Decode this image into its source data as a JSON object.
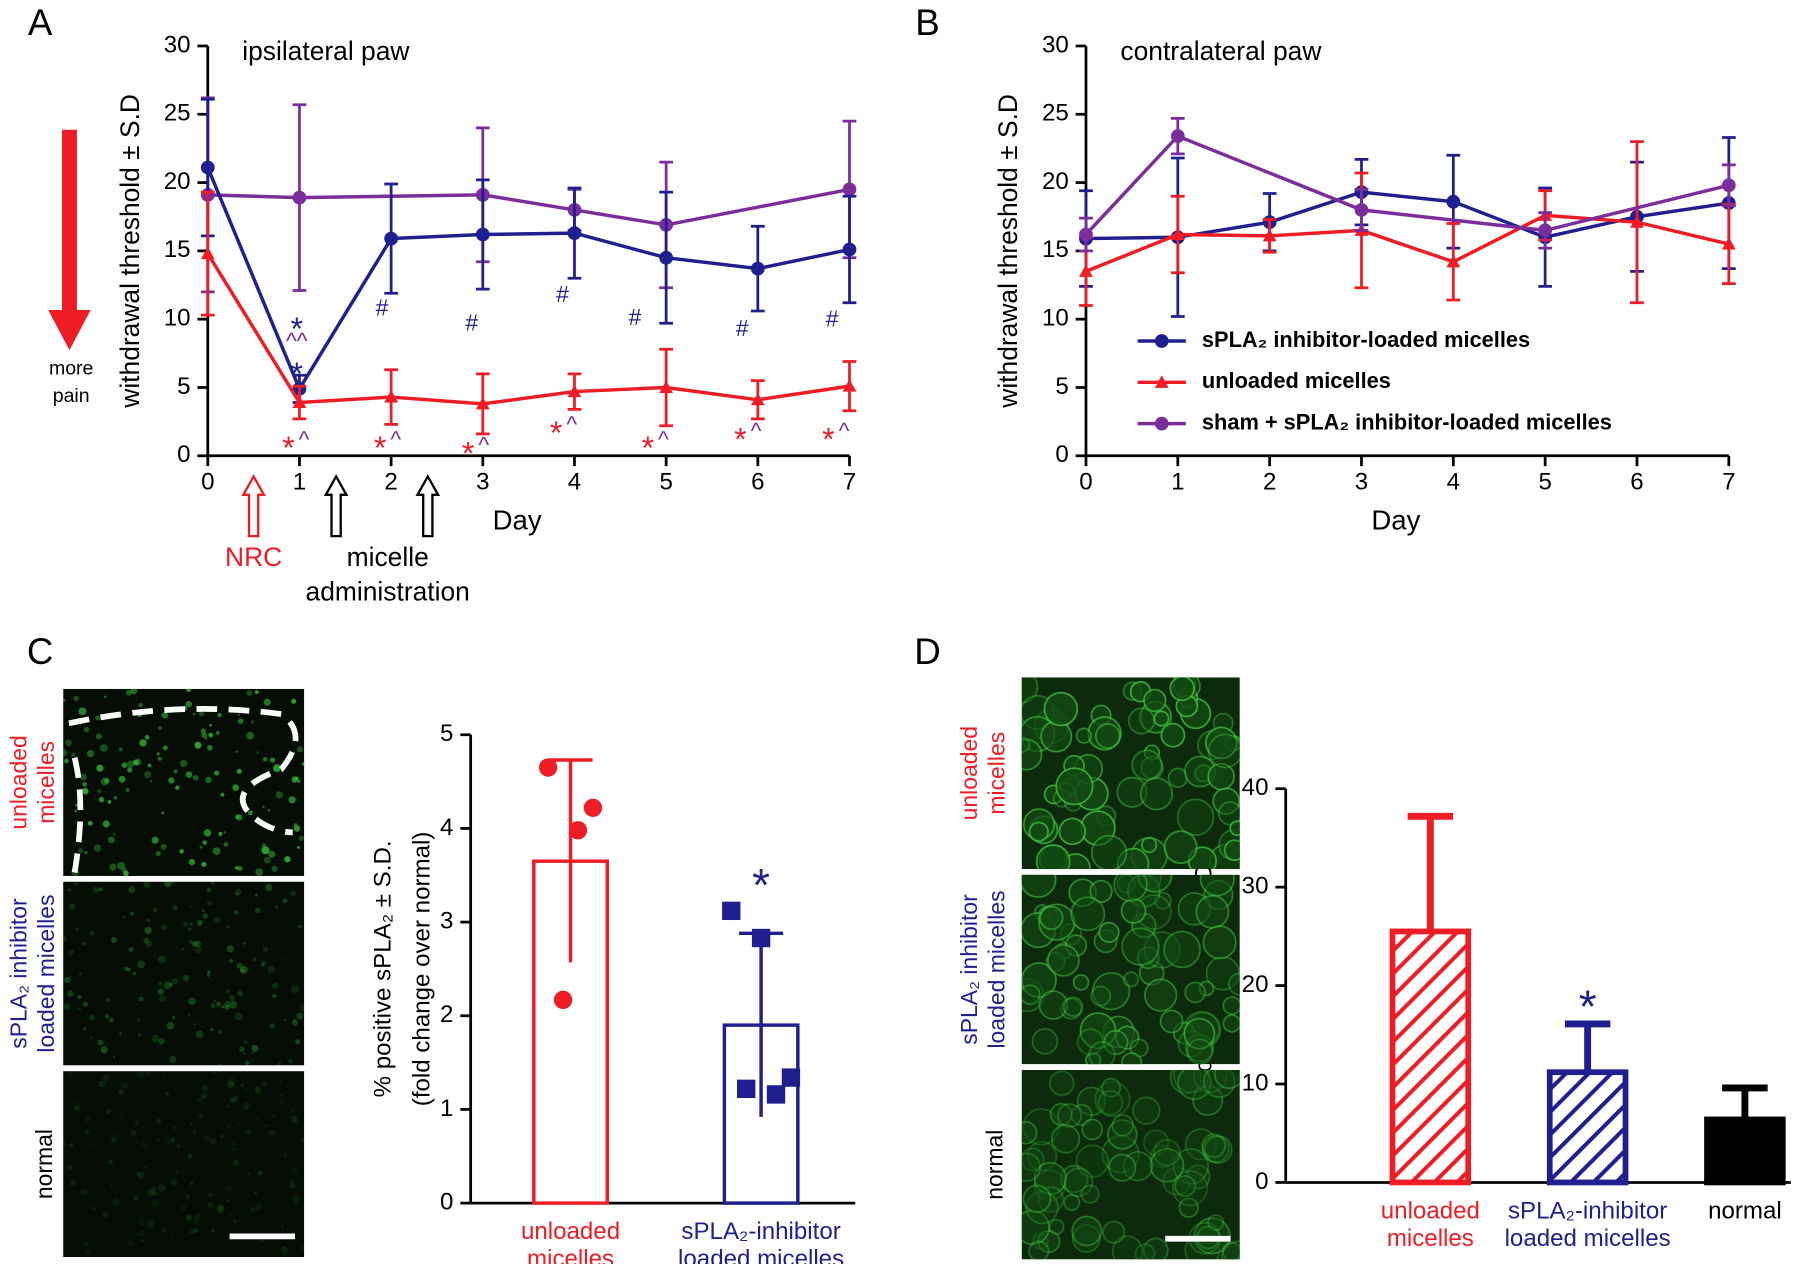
{
  "chart_data": [
    {
      "type": "line",
      "panel": "A",
      "title": "ipsilateral paw",
      "xlabel": "Day",
      "ylabel": "withdrawal threshold ± S.D",
      "xlim": [
        0,
        7
      ],
      "xticks": [
        0,
        1,
        2,
        3,
        4,
        5,
        6,
        7
      ],
      "ylim": [
        0,
        30
      ],
      "yticks": [
        0,
        5,
        10,
        15,
        20,
        25,
        30
      ],
      "series": [
        {
          "color": "#7b2d9b",
          "marker": "circle",
          "x": [
            0,
            1,
            3,
            4,
            5,
            7
          ],
          "values": [
            19.1,
            18.9,
            19.1,
            18.0,
            16.9,
            19.5
          ],
          "errors": [
            7.1,
            6.8,
            4.9,
            1.5,
            4.6,
            5.0
          ]
        },
        {
          "color": "#1f1f8f",
          "marker": "circle",
          "x": [
            0,
            1,
            2,
            3,
            4,
            5,
            6,
            7
          ],
          "values": [
            21.1,
            4.9,
            15.9,
            16.2,
            16.3,
            14.5,
            13.7,
            15.1
          ],
          "errors": [
            5.0,
            1.0,
            4.0,
            4.0,
            3.3,
            4.8,
            3.1,
            3.9
          ]
        },
        {
          "color": "#ee1c25",
          "marker": "triangle",
          "x": [
            0,
            1,
            2,
            3,
            4,
            5,
            6,
            7
          ],
          "values": [
            14.8,
            3.9,
            4.3,
            3.8,
            4.7,
            5.0,
            4.1,
            5.1
          ],
          "errors": [
            4.5,
            1.2,
            2.0,
            2.2,
            1.3,
            2.8,
            1.4,
            1.8
          ]
        }
      ],
      "annotations": [
        {
          "text": "*",
          "color": "#1f1f8f",
          "x": 0.97,
          "y": 9.6
        },
        {
          "text": "^^",
          "color": "#7b2d9b",
          "x": 0.97,
          "y": 8.3
        },
        {
          "text": "*",
          "color": "#1f1f8f",
          "x": 0.97,
          "y": 6.3
        },
        {
          "text": "#",
          "color": "#1f1f8f",
          "x": 1.9,
          "y": 10.7
        },
        {
          "text": "#",
          "color": "#1f1f8f",
          "x": 2.88,
          "y": 9.6
        },
        {
          "text": "#",
          "color": "#1f1f8f",
          "x": 3.87,
          "y": 11.7
        },
        {
          "text": "#",
          "color": "#1f1f8f",
          "x": 4.66,
          "y": 10.0
        },
        {
          "text": "#",
          "color": "#1f1f8f",
          "x": 5.83,
          "y": 9.2
        },
        {
          "text": "#",
          "color": "#1f1f8f",
          "x": 6.81,
          "y": 9.9
        },
        {
          "text": "*",
          "color": "#ee1c25",
          "x": 0.88,
          "y": 0.9
        },
        {
          "text": "^",
          "color": "#7b2d9b",
          "x": 1.05,
          "y": 1.1
        },
        {
          "text": "*",
          "color": "#ee1c25",
          "x": 1.88,
          "y": 0.9
        },
        {
          "text": "^",
          "color": "#7b2d9b",
          "x": 2.05,
          "y": 1.1
        },
        {
          "text": "*",
          "color": "#ee1c25",
          "x": 2.84,
          "y": 0.5
        },
        {
          "text": "^",
          "color": "#7b2d9b",
          "x": 3.01,
          "y": 0.7
        },
        {
          "text": "*",
          "color": "#ee1c25",
          "x": 3.8,
          "y": 2.0
        },
        {
          "text": "^",
          "color": "#7b2d9b",
          "x": 3.97,
          "y": 2.2
        },
        {
          "text": "*",
          "color": "#ee1c25",
          "x": 4.8,
          "y": 0.9
        },
        {
          "text": "^",
          "color": "#7b2d9b",
          "x": 4.97,
          "y": 1.1
        },
        {
          "text": "*",
          "color": "#ee1c25",
          "x": 5.81,
          "y": 1.5
        },
        {
          "text": "^",
          "color": "#7b2d9b",
          "x": 5.98,
          "y": 1.7
        },
        {
          "text": "*",
          "color": "#ee1c25",
          "x": 6.77,
          "y": 1.5
        },
        {
          "text": "^",
          "color": "#7b2d9b",
          "x": 6.94,
          "y": 1.7
        }
      ],
      "events": [
        {
          "text": [
            "NRC"
          ],
          "color": "#ee1c25",
          "x": [
            0.5
          ]
        },
        {
          "text": [
            "micelle",
            "administration"
          ],
          "color": "#000000",
          "x": [
            1.4,
            2.4
          ]
        }
      ],
      "side_note": {
        "text": [
          "more",
          "pain"
        ],
        "color": "#ee1c25"
      }
    },
    {
      "type": "line",
      "panel": "B",
      "title": "contralateral paw",
      "xlabel": "Day",
      "ylabel": "withdrawal threshold ± S.D",
      "xlim": [
        0,
        7
      ],
      "xticks": [
        0,
        1,
        2,
        3,
        4,
        5,
        6,
        7
      ],
      "ylim": [
        0,
        30
      ],
      "yticks": [
        0,
        5,
        10,
        15,
        20,
        25,
        30
      ],
      "legend": "lower left",
      "series": [
        {
          "name": "sPLA₂ inhibitor-loaded micelles",
          "color": "#1f1f8f",
          "marker": "circle",
          "x": [
            0,
            1,
            2,
            3,
            4,
            5,
            6,
            7
          ],
          "values": [
            15.9,
            16.0,
            17.1,
            19.3,
            18.6,
            16.0,
            17.5,
            18.5
          ],
          "errors": [
            3.5,
            5.8,
            2.1,
            2.4,
            3.4,
            3.6,
            4.0,
            4.8
          ]
        },
        {
          "name": "unloaded micelles",
          "color": "#ee1c25",
          "marker": "triangle",
          "x": [
            0,
            1,
            2,
            3,
            4,
            5,
            6,
            7
          ],
          "values": [
            13.5,
            16.2,
            16.1,
            16.5,
            14.2,
            17.6,
            17.1,
            15.5
          ],
          "errors": [
            2.5,
            2.8,
            1.2,
            4.2,
            2.8,
            1.8,
            5.9,
            2.9
          ]
        },
        {
          "name": "sham + sPLA₂ inhibitor-loaded micelles",
          "color": "#7b2d9b",
          "marker": "circle",
          "x": [
            0,
            1,
            3,
            5,
            7
          ],
          "values": [
            16.2,
            23.4,
            18.0,
            16.5,
            19.8
          ],
          "errors": [
            1.2,
            1.3,
            1.5,
            1.3,
            1.5
          ]
        }
      ]
    },
    {
      "type": "bar",
      "panel": "C",
      "style": "outline",
      "error_direction": "both",
      "ylabel": [
        "% positive sPLA₂ ± S.D.",
        "(fold change over normal)"
      ],
      "categories": [
        [
          "unloaded",
          "micelles"
        ],
        [
          "sPLA₂-inhibitor",
          "loaded micelles"
        ]
      ],
      "colors": [
        "#ee1c25",
        "#1f1f8f"
      ],
      "values": [
        3.65,
        1.9
      ],
      "errors": [
        1.08,
        0.98
      ],
      "points": [
        [
          4.65,
          4.22,
          3.98,
          2.17
        ],
        [
          3.12,
          2.83,
          1.34,
          1.22,
          1.16
        ]
      ],
      "point_markers": [
        "circle",
        "square"
      ],
      "ylim": [
        0,
        5
      ],
      "yticks": [
        0,
        1,
        2,
        3,
        4,
        5
      ],
      "annotations": [
        {
          "text": "*",
          "color": "#1f1f8f",
          "category": 1,
          "y": 3.45
        }
      ],
      "image_labels": [
        {
          "text": [
            "unloaded",
            "micelles"
          ],
          "color": "#ee1c25"
        },
        {
          "text": [
            "sPLA₂ inhibitor",
            "loaded micelles"
          ],
          "color": "#1f1f8f"
        },
        {
          "text": [
            "normal"
          ],
          "color": "#000000"
        }
      ]
    },
    {
      "type": "bar",
      "panel": "D",
      "style": "hatch",
      "error_direction": "up",
      "ylabel": [
        "% positive sPLA₂ ± S.D."
      ],
      "categories": [
        [
          "unloaded",
          "micelles"
        ],
        [
          "sPLA₂-inhibitor",
          "loaded micelles"
        ],
        [
          "normal"
        ]
      ],
      "colors": [
        "#ee1c25",
        "#1f1f8f",
        "#000000"
      ],
      "hatched": [
        true,
        true,
        false
      ],
      "values": [
        25.5,
        11.2,
        6.4
      ],
      "errors": [
        11.7,
        4.9,
        3.2
      ],
      "ylim": [
        0,
        40
      ],
      "yticks": [
        0,
        10,
        20,
        30,
        40
      ],
      "annotations": [
        {
          "text": "*",
          "color": "#1f1f8f",
          "category": 1,
          "y": 18.4
        }
      ],
      "image_labels": [
        {
          "text": [
            "unloaded",
            "micelles"
          ],
          "color": "#ee1c25"
        },
        {
          "text": [
            "sPLA₂ inhibitor",
            "loaded micelles"
          ],
          "color": "#1f1f8f"
        },
        {
          "text": [
            "normal"
          ],
          "color": "#000000"
        }
      ]
    }
  ]
}
